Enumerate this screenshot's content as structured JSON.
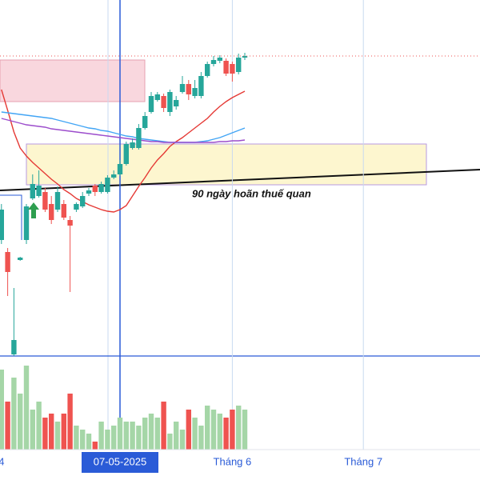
{
  "chart_data": {
    "type": "candlestick",
    "annotation": "90 ngày hoãn thuế quan",
    "categories": [
      "4",
      null,
      null,
      null,
      null,
      null,
      null,
      null,
      null,
      null,
      null,
      null,
      null,
      null,
      null,
      null,
      null,
      null,
      null,
      "07-05-2025",
      null,
      null,
      null,
      null,
      null,
      null,
      null,
      null,
      null,
      null,
      null,
      null,
      null,
      null,
      null,
      null,
      null,
      "Tháng 6",
      null,
      null,
      null,
      null,
      null,
      null,
      null,
      null,
      null,
      null,
      null,
      null,
      null,
      null,
      null,
      null,
      null,
      null,
      null,
      null,
      "Tháng 7",
      null,
      null,
      null,
      null,
      null,
      null,
      null,
      null,
      null,
      null,
      null,
      null,
      null,
      null,
      null,
      null,
      null,
      null
    ],
    "crosshair": 19,
    "ylim": [
      0,
      445
    ],
    "volume_lim": [
      0,
      107
    ],
    "up_color": "#26a69a",
    "down_color": "#ef5350",
    "volume_up_color": "#a5d6a7",
    "volume_down_color": "#ef5350",
    "open": [
      145,
      130,
      2,
      120,
      145,
      197,
      200,
      205,
      190,
      183,
      190,
      170,
      183,
      187,
      203,
      213,
      205,
      205,
      223,
      227,
      240,
      260,
      260,
      285,
      305,
      320,
      325,
      305,
      312,
      330,
      340,
      325,
      325,
      350,
      365,
      369,
      369,
      365,
      355,
      373,
      null,
      null,
      null,
      null,
      null,
      null,
      null,
      null,
      null,
      null,
      null,
      null,
      null,
      null,
      null,
      null,
      null,
      null,
      null,
      null,
      null,
      null,
      null,
      null,
      null,
      null,
      null,
      null,
      null,
      null,
      null,
      null,
      null,
      null,
      null,
      null,
      null
    ],
    "high": [
      190,
      135,
      85,
      124,
      190,
      227,
      232,
      210,
      200,
      212,
      195,
      175,
      192,
      205,
      210,
      215,
      218,
      226,
      232,
      245,
      268,
      272,
      290,
      305,
      330,
      330,
      328,
      333,
      325,
      350,
      345,
      345,
      355,
      368,
      375,
      376,
      372,
      368,
      378,
      379,
      null,
      null,
      null,
      null,
      null,
      null,
      null,
      null,
      null,
      null,
      null,
      null,
      null,
      null,
      null,
      null,
      null,
      null,
      null,
      null,
      null,
      null,
      null,
      null,
      null,
      null,
      null,
      null,
      null,
      null,
      null,
      null,
      null,
      null,
      null,
      null,
      null
    ],
    "low": [
      140,
      75,
      0,
      119,
      140,
      195,
      198,
      180,
      165,
      180,
      170,
      80,
      180,
      185,
      200,
      200,
      203,
      203,
      221,
      225,
      238,
      258,
      258,
      283,
      303,
      318,
      305,
      300,
      308,
      328,
      320,
      322,
      322,
      348,
      362,
      366,
      350,
      343,
      352,
      370,
      null,
      null,
      null,
      null,
      null,
      null,
      null,
      null,
      null,
      null,
      null,
      null,
      null,
      null,
      null,
      null,
      null,
      null,
      null,
      null,
      null,
      null,
      null,
      null,
      null,
      null,
      null,
      null,
      null,
      null,
      null,
      null,
      null,
      null,
      null,
      null,
      null
    ],
    "close": [
      183,
      105,
      20,
      123,
      187,
      215,
      213,
      183,
      170,
      205,
      173,
      163,
      190,
      200,
      207,
      205,
      215,
      223,
      227,
      240,
      265,
      267,
      285,
      300,
      325,
      327,
      310,
      330,
      320,
      340,
      327,
      335,
      350,
      365,
      370,
      373,
      353,
      353,
      373,
      375,
      null,
      null,
      null,
      null,
      null,
      null,
      null,
      null,
      null,
      null,
      null,
      null,
      null,
      null,
      null,
      null,
      null,
      null,
      null,
      null,
      null,
      null,
      null,
      null,
      null,
      null,
      null,
      null,
      null,
      null,
      null,
      null,
      null,
      null,
      null,
      null,
      null
    ],
    "volume": [
      100,
      60,
      90,
      70,
      105,
      50,
      60,
      40,
      45,
      35,
      45,
      70,
      30,
      25,
      20,
      10,
      35,
      25,
      30,
      40,
      35,
      35,
      30,
      40,
      45,
      40,
      60,
      20,
      35,
      25,
      50,
      40,
      30,
      55,
      50,
      45,
      40,
      50,
      55,
      50,
      null,
      null,
      null,
      null,
      null,
      null,
      null,
      null,
      null,
      null,
      null,
      null,
      null,
      null,
      null,
      null,
      null,
      null,
      null,
      null,
      null,
      null,
      null,
      null,
      null,
      null,
      null,
      null,
      null,
      null,
      null,
      null,
      null,
      null,
      null,
      null,
      null
    ],
    "series": [
      {
        "name": "MA20",
        "color": "#e53935",
        "values": [
          333,
          307,
          280,
          260,
          250,
          242,
          235,
          228,
          221,
          215,
          208,
          203,
          197,
          193,
          189,
          186,
          183,
          181,
          180,
          183,
          188,
          200,
          212,
          223,
          235,
          245,
          253,
          262,
          268,
          273,
          279,
          285,
          291,
          297,
          305,
          312,
          318,
          323,
          327,
          331,
          null,
          null,
          null,
          null,
          null,
          null,
          null,
          null,
          null,
          null,
          null,
          null,
          null,
          null,
          null,
          null,
          null,
          null,
          null,
          null,
          null,
          null,
          null,
          null,
          null,
          null,
          null,
          null,
          null,
          null,
          null,
          null,
          null,
          null,
          null,
          null,
          null
        ]
      },
      {
        "name": "MA50",
        "color": "#42a5f5",
        "values": [
          305,
          304,
          303,
          302,
          301,
          300,
          299,
          298,
          297,
          295,
          293,
          291,
          289,
          287,
          285,
          284,
          282,
          281,
          279,
          277,
          275,
          274,
          272,
          271,
          270,
          269,
          268,
          267,
          267,
          267,
          267,
          267,
          268,
          269,
          271,
          273,
          276,
          279,
          282,
          285,
          null,
          null,
          null,
          null,
          null,
          null,
          null,
          null,
          null,
          null,
          null,
          null,
          null,
          null,
          null,
          null,
          null,
          null,
          null,
          null,
          null,
          null,
          null,
          null,
          null,
          null,
          null,
          null,
          null,
          null,
          null,
          null,
          null,
          null,
          null,
          null,
          null
        ]
      },
      {
        "name": "MA100",
        "color": "#9c4dcc",
        "values": [
          297,
          295,
          293,
          291,
          289,
          288,
          287,
          286,
          284,
          283,
          282,
          281,
          280,
          279,
          278,
          277,
          276,
          275,
          274,
          273,
          272,
          271,
          270,
          269,
          268,
          268,
          267,
          267,
          267,
          267,
          267,
          267,
          267,
          267,
          267,
          268,
          268,
          269,
          269,
          270,
          null,
          null,
          null,
          null,
          null,
          null,
          null,
          null,
          null,
          null,
          null,
          null,
          null,
          null,
          null,
          null,
          null,
          null,
          null,
          null,
          null,
          null,
          null,
          null,
          null,
          null,
          null,
          null,
          null,
          null,
          null,
          null,
          null,
          null,
          null,
          null,
          null
        ]
      }
    ]
  }
}
